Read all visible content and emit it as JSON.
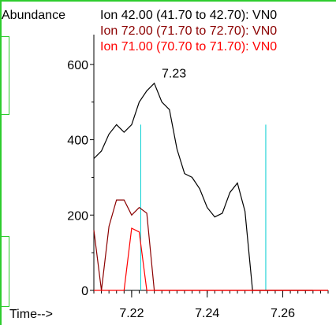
{
  "chart_data": {
    "type": "line",
    "ylabel": "Abundance",
    "xlabel": "Time-->",
    "xlim": [
      7.21,
      7.272
    ],
    "ylim": [
      0,
      700
    ],
    "xticks": [
      "7.22",
      "7.24",
      "7.26"
    ],
    "xtick_values": [
      7.22,
      7.24,
      7.26
    ],
    "yticks": [
      "0",
      "200",
      "400",
      "600"
    ],
    "ytick_values": [
      0,
      200,
      400,
      600
    ],
    "legend": [
      {
        "label": "Ion  42.00 (41.70 to 42.70): VN0",
        "color": "#000000"
      },
      {
        "label": "Ion  72.00 (71.70 to 72.70): VN0",
        "color": "#8b0000"
      },
      {
        "label": "Ion  71.00 (70.70 to 71.70): VN0",
        "color": "#ff0000"
      }
    ],
    "series": [
      {
        "name": "Ion  42.00 (41.70 to 42.70): VN0",
        "color": "#000000",
        "x": [
          7.21,
          7.212,
          7.214,
          7.216,
          7.218,
          7.22,
          7.222,
          7.224,
          7.226,
          7.228,
          7.23,
          7.232,
          7.234,
          7.236,
          7.238,
          7.24,
          7.242,
          7.244,
          7.246,
          7.248,
          7.25,
          7.252,
          7.254,
          7.256,
          7.258,
          7.26,
          7.262,
          7.264,
          7.266,
          7.268
        ],
        "y": [
          350,
          370,
          415,
          440,
          420,
          440,
          500,
          530,
          550,
          500,
          480,
          375,
          310,
          300,
          270,
          220,
          195,
          205,
          260,
          285,
          210,
          0,
          0,
          0,
          0,
          0,
          0,
          0,
          0,
          0
        ]
      },
      {
        "name": "Ion  72.00 (71.70 to 72.70): VN0",
        "color": "#8b0000",
        "x": [
          7.21,
          7.212,
          7.214,
          7.216,
          7.218,
          7.22,
          7.222,
          7.224,
          7.226,
          7.228,
          7.23,
          7.232,
          7.272
        ],
        "y": [
          160,
          0,
          170,
          240,
          240,
          200,
          220,
          205,
          0,
          0,
          0,
          0,
          0
        ]
      },
      {
        "name": "Ion  71.00 (70.70 to 71.70): VN0",
        "color": "#ff0000",
        "x": [
          7.21,
          7.212,
          7.214,
          7.216,
          7.218,
          7.22,
          7.222,
          7.224,
          7.226,
          7.272
        ],
        "y": [
          0,
          0,
          0,
          0,
          0,
          165,
          155,
          0,
          0,
          0
        ]
      }
    ],
    "annotations": [
      {
        "text": "7.23",
        "x": 7.2312,
        "y": 565
      }
    ],
    "markers": [
      {
        "x": 7.2224,
        "color": "#00ced1"
      },
      {
        "x": 7.2555,
        "color": "#00ced1"
      }
    ]
  }
}
